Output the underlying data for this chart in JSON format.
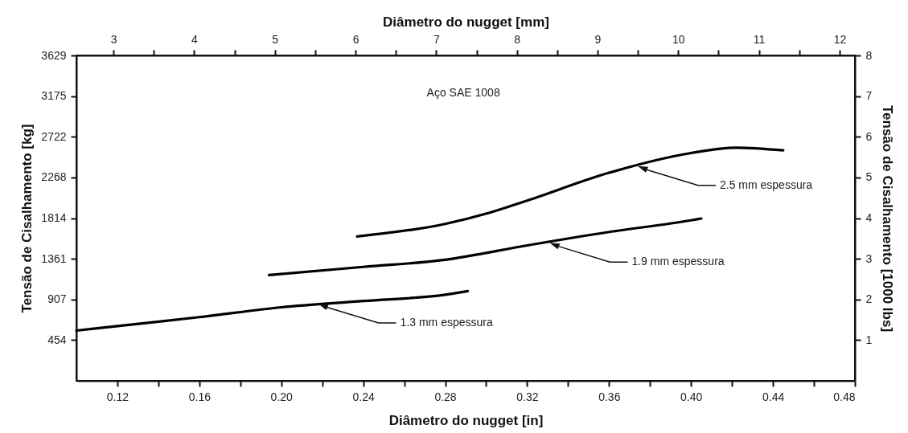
{
  "chart_data": {
    "type": "line",
    "xlabel": "Diâmetro do nugget [in]",
    "x2label": "Diâmetro do nugget [mm]",
    "ylabel": "Tensão de Cisalhamento [kg]",
    "y2label": "Tensão de Cisalhamento [1000 lbs]",
    "xlim": [
      0.1,
      0.48
    ],
    "xticks": [
      0.12,
      {
        "value": 0.14,
        "label": null
      },
      0.16,
      {
        "value": 0.18,
        "label": null
      },
      {
        "value": 0.2,
        "label": "0.20"
      },
      {
        "value": 0.22,
        "label": null
      },
      0.24,
      {
        "value": 0.26,
        "label": null
      },
      0.28,
      {
        "value": 0.3,
        "label": null
      },
      0.32,
      {
        "value": 0.34,
        "label": null
      },
      0.36,
      {
        "value": 0.38,
        "label": null
      },
      {
        "value": 0.4,
        "label": "0.40"
      },
      {
        "value": 0.42,
        "label": null
      },
      0.44,
      {
        "value": 0.46,
        "label": null
      },
      0.48
    ],
    "x2lim": [
      2.54,
      12.19
    ],
    "x2ticks": [
      3,
      {
        "value": 3.5,
        "label": null
      },
      4,
      {
        "value": 4.5,
        "label": null
      },
      5,
      {
        "value": 5.5,
        "label": null
      },
      6,
      {
        "value": 6.5,
        "label": null
      },
      7,
      {
        "value": 7.5,
        "label": null
      },
      8,
      {
        "value": 8.5,
        "label": null
      },
      9,
      {
        "value": 9.5,
        "label": null
      },
      10,
      {
        "value": 10.5,
        "label": null
      },
      11,
      {
        "value": 11.5,
        "label": null
      },
      12
    ],
    "ylim": [
      0,
      3629
    ],
    "yticks": [
      454,
      907,
      1361,
      1814,
      2268,
      2722,
      3175,
      3629
    ],
    "y2lim": [
      0,
      8
    ],
    "y2ticks": [
      1,
      2,
      3,
      4,
      5,
      6,
      7,
      8
    ],
    "series": [
      {
        "color": "#000000",
        "x": [
          0.1,
          0.132,
          0.16,
          0.2,
          0.24,
          0.28,
          0.291
        ],
        "values": [
          560,
          640,
          710,
          820,
          890,
          960,
          1000
        ]
      },
      {
        "color": "#000000",
        "x": [
          0.194,
          0.24,
          0.28,
          0.32,
          0.36,
          0.4,
          0.405
        ],
        "values": [
          1180,
          1270,
          1350,
          1510,
          1660,
          1790,
          1810
        ]
      },
      {
        "color": "#000000",
        "x": [
          0.237,
          0.28,
          0.301,
          0.32,
          0.36,
          0.4,
          0.422,
          0.445
        ],
        "values": [
          1610,
          1750,
          1870,
          2010,
          2320,
          2540,
          2600,
          2570
        ]
      }
    ],
    "annotations": [
      "Aço SAE 1008",
      {
        "text": "1.3 mm espessura",
        "x": 0.218,
        "y": 860
      },
      {
        "text": "1.9 mm espessura",
        "x": 0.331,
        "y": 1540
      },
      {
        "text": "2.5 mm espessura",
        "x": 0.374,
        "y": 2395
      }
    ]
  }
}
